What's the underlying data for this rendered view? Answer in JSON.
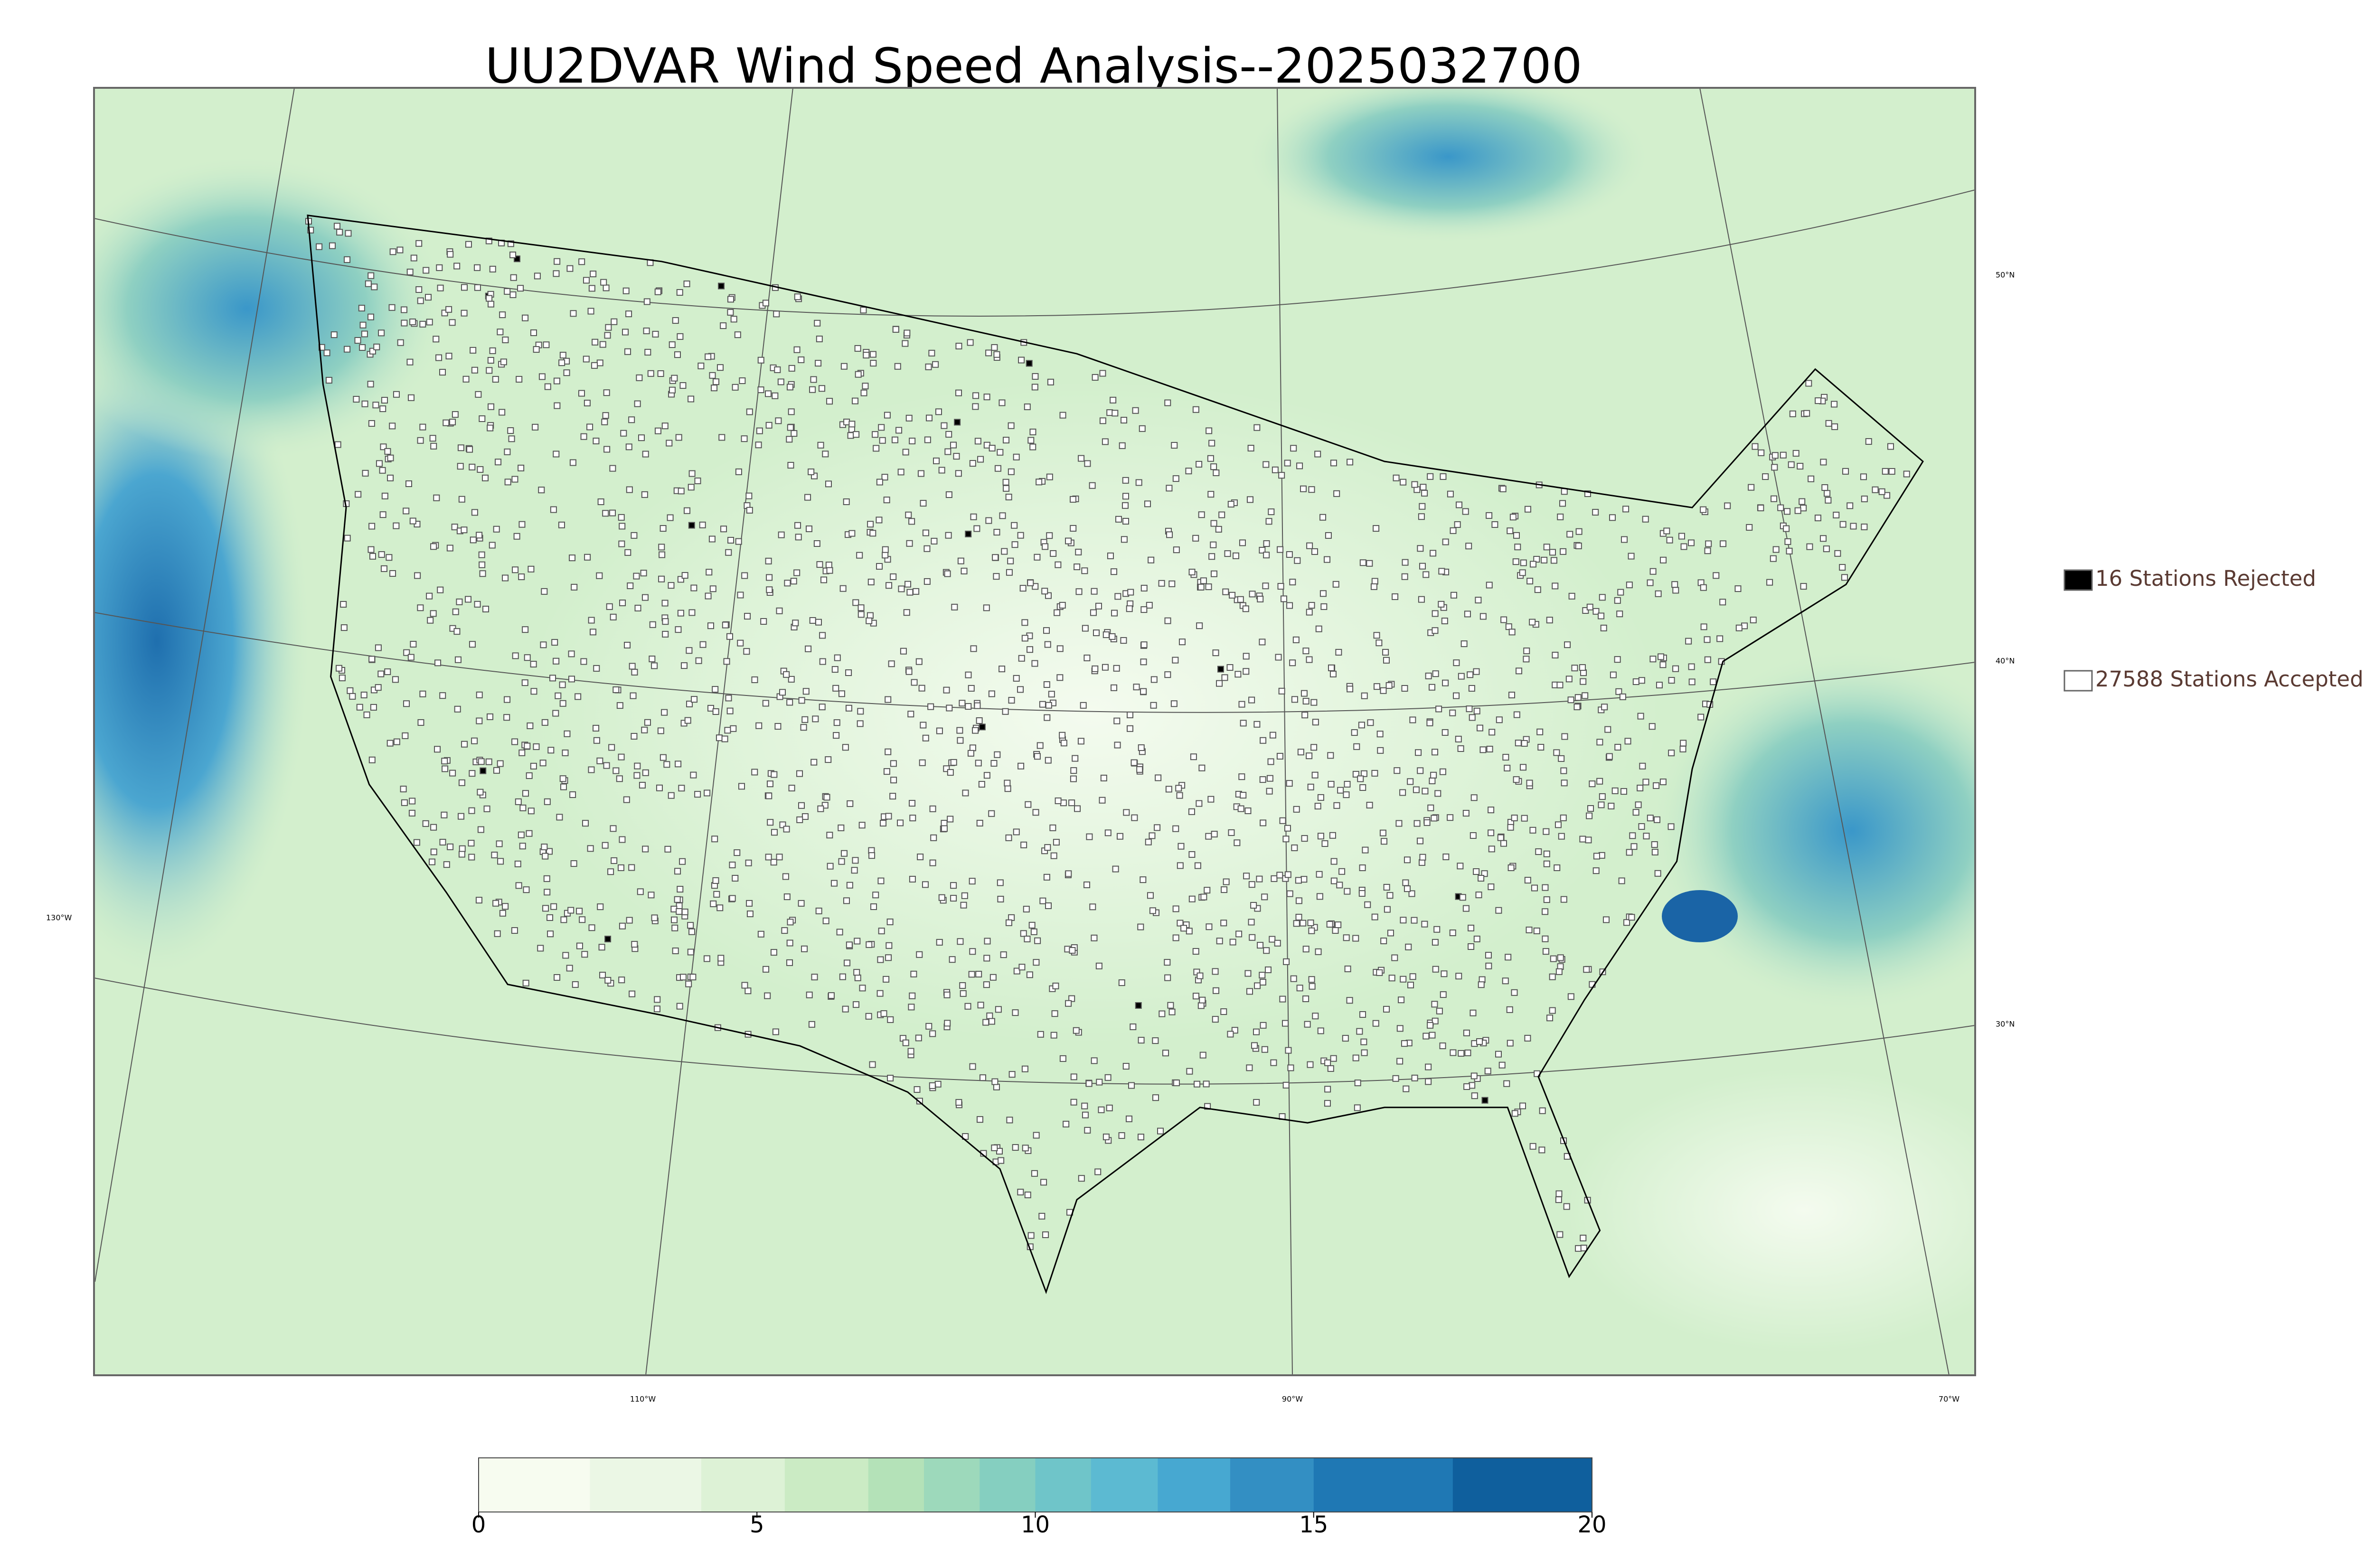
{
  "title": "UU2DVAR Wind Speed Analysis--2025032700",
  "graticule_labels": {
    "latitudes": [
      "50°N",
      "40°N",
      "30°N"
    ],
    "longitudes": [
      "130°W",
      "110°W",
      "90°W",
      "70°W"
    ]
  },
  "legend": [
    {
      "label": "16 Stations Rejected",
      "color": "#000000"
    },
    {
      "label": "27588 Stations Accepted",
      "color": "#ffffff"
    }
  ],
  "colorbar": {
    "lim": [
      0,
      20
    ],
    "ticks": [
      0,
      5,
      10,
      15,
      20
    ],
    "levels": [
      0,
      2,
      4,
      5.5,
      7,
      8,
      9,
      10,
      11,
      12.2,
      13.5,
      15,
      17.5,
      20
    ],
    "colors": [
      "#f7fcf0",
      "#ebf7e5",
      "#ddf2d6",
      "#cbebc4",
      "#b4e2b8",
      "#9dd9bb",
      "#85cfc0",
      "#6fc5c9",
      "#5cbad2",
      "#47a8d1",
      "#338fc3",
      "#1f78b4",
      "#0f5f9d"
    ]
  }
}
